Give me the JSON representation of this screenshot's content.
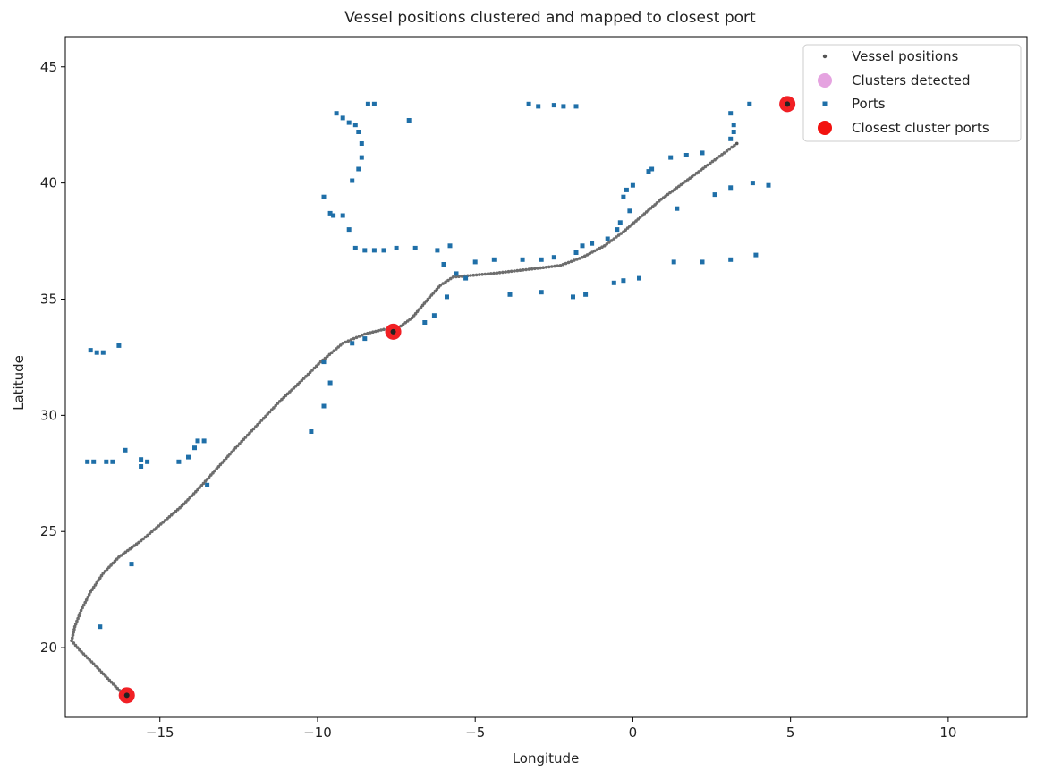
{
  "chart_data": {
    "type": "scatter",
    "title": "Vessel positions clustered and mapped to closest port",
    "xlabel": "Longitude",
    "ylabel": "Latitude",
    "xlim": [
      -18.0,
      12.5
    ],
    "ylim": [
      17.0,
      46.3
    ],
    "xticks": [
      -15,
      -10,
      -5,
      0,
      5,
      10
    ],
    "yticks": [
      20,
      25,
      30,
      35,
      40,
      45
    ],
    "grid": false,
    "legend_position": "top-right",
    "series": [
      {
        "name": "Vessel positions",
        "color": "#555555",
        "marker": "small-dot",
        "track": [
          [
            -16.1,
            17.9
          ],
          [
            -16.6,
            18.6
          ],
          [
            -17.1,
            19.3
          ],
          [
            -17.55,
            19.9
          ],
          [
            -17.8,
            20.3
          ],
          [
            -17.7,
            20.9
          ],
          [
            -17.5,
            21.6
          ],
          [
            -17.2,
            22.4
          ],
          [
            -16.8,
            23.2
          ],
          [
            -16.3,
            23.9
          ],
          [
            -15.6,
            24.6
          ],
          [
            -14.9,
            25.4
          ],
          [
            -14.3,
            26.1
          ],
          [
            -13.8,
            26.8
          ],
          [
            -13.2,
            27.7
          ],
          [
            -12.6,
            28.6
          ],
          [
            -11.9,
            29.6
          ],
          [
            -11.2,
            30.6
          ],
          [
            -10.5,
            31.5
          ],
          [
            -9.9,
            32.3
          ],
          [
            -9.2,
            33.1
          ],
          [
            -8.5,
            33.5
          ],
          [
            -7.9,
            33.7
          ],
          [
            -7.5,
            33.7
          ],
          [
            -7.0,
            34.2
          ],
          [
            -6.5,
            35.0
          ],
          [
            -6.1,
            35.6
          ],
          [
            -5.7,
            35.95
          ],
          [
            -4.5,
            36.1
          ],
          [
            -3.2,
            36.3
          ],
          [
            -2.3,
            36.45
          ],
          [
            -1.6,
            36.8
          ],
          [
            -0.9,
            37.3
          ],
          [
            -0.3,
            37.9
          ],
          [
            0.3,
            38.6
          ],
          [
            0.9,
            39.3
          ],
          [
            1.6,
            40.0
          ],
          [
            2.3,
            40.7
          ],
          [
            2.9,
            41.3
          ],
          [
            3.3,
            41.7
          ]
        ]
      },
      {
        "name": "Clusters detected",
        "color": "#e5a3e0",
        "marker": "large-dot",
        "points": [
          [
            -16.05,
            17.95
          ],
          [
            -7.6,
            33.6
          ],
          [
            4.9,
            43.4
          ]
        ]
      },
      {
        "name": "Ports",
        "color": "#1f6fa8",
        "marker": "small-square",
        "points": [
          [
            -17.2,
            32.8
          ],
          [
            -17.0,
            32.7
          ],
          [
            -16.8,
            32.7
          ],
          [
            -16.3,
            33.0
          ],
          [
            -17.3,
            28.0
          ],
          [
            -17.1,
            28.0
          ],
          [
            -16.7,
            28.0
          ],
          [
            -16.5,
            28.0
          ],
          [
            -16.1,
            28.5
          ],
          [
            -15.6,
            28.1
          ],
          [
            -15.6,
            27.8
          ],
          [
            -15.4,
            28.0
          ],
          [
            -14.4,
            28.0
          ],
          [
            -14.1,
            28.2
          ],
          [
            -13.9,
            28.6
          ],
          [
            -13.8,
            28.9
          ],
          [
            -13.6,
            28.9
          ],
          [
            -13.5,
            27.0
          ],
          [
            -16.9,
            20.9
          ],
          [
            -15.9,
            23.6
          ],
          [
            -9.8,
            39.4
          ],
          [
            -9.6,
            38.7
          ],
          [
            -9.5,
            38.6
          ],
          [
            -9.2,
            38.6
          ],
          [
            -9.0,
            38.0
          ],
          [
            -8.8,
            37.2
          ],
          [
            -8.5,
            37.1
          ],
          [
            -8.2,
            37.1
          ],
          [
            -7.9,
            37.1
          ],
          [
            -7.5,
            37.2
          ],
          [
            -6.9,
            37.2
          ],
          [
            -6.2,
            37.1
          ],
          [
            -6.0,
            36.5
          ],
          [
            -5.8,
            37.3
          ],
          [
            -5.6,
            36.1
          ],
          [
            -5.3,
            35.9
          ],
          [
            -5.0,
            36.6
          ],
          [
            -9.4,
            43.0
          ],
          [
            -9.2,
            42.8
          ],
          [
            -9.0,
            42.6
          ],
          [
            -8.8,
            42.5
          ],
          [
            -8.7,
            42.2
          ],
          [
            -8.6,
            41.7
          ],
          [
            -8.6,
            41.1
          ],
          [
            -8.7,
            40.6
          ],
          [
            -8.9,
            40.1
          ],
          [
            -8.4,
            43.4
          ],
          [
            -8.2,
            43.4
          ],
          [
            -7.1,
            42.7
          ],
          [
            -3.3,
            43.4
          ],
          [
            -3.0,
            43.3
          ],
          [
            -2.5,
            43.35
          ],
          [
            -2.2,
            43.3
          ],
          [
            -1.8,
            43.3
          ],
          [
            -9.8,
            32.3
          ],
          [
            -9.6,
            31.4
          ],
          [
            -9.8,
            30.4
          ],
          [
            -10.2,
            29.3
          ],
          [
            -8.9,
            33.1
          ],
          [
            -8.5,
            33.3
          ],
          [
            -6.6,
            34.0
          ],
          [
            -6.3,
            34.3
          ],
          [
            -5.9,
            35.1
          ],
          [
            -3.9,
            35.2
          ],
          [
            -2.9,
            35.3
          ],
          [
            -1.9,
            35.1
          ],
          [
            -1.5,
            35.2
          ],
          [
            -0.6,
            35.7
          ],
          [
            -0.3,
            35.8
          ],
          [
            0.2,
            35.9
          ],
          [
            -4.4,
            36.7
          ],
          [
            -3.5,
            36.7
          ],
          [
            -2.9,
            36.7
          ],
          [
            -2.5,
            36.8
          ],
          [
            -1.8,
            37.0
          ],
          [
            -1.6,
            37.3
          ],
          [
            -1.3,
            37.4
          ],
          [
            -0.8,
            37.6
          ],
          [
            -0.5,
            38.0
          ],
          [
            -0.4,
            38.3
          ],
          [
            -0.1,
            38.8
          ],
          [
            -0.3,
            39.4
          ],
          [
            -0.2,
            39.7
          ],
          [
            0.0,
            39.9
          ],
          [
            0.5,
            40.5
          ],
          [
            0.6,
            40.6
          ],
          [
            1.2,
            41.1
          ],
          [
            1.7,
            41.2
          ],
          [
            2.2,
            41.3
          ],
          [
            3.1,
            41.9
          ],
          [
            3.2,
            42.2
          ],
          [
            3.2,
            42.5
          ],
          [
            3.1,
            43.0
          ],
          [
            3.7,
            43.4
          ],
          [
            2.6,
            39.5
          ],
          [
            3.1,
            39.8
          ],
          [
            3.8,
            40.0
          ],
          [
            4.3,
            39.9
          ],
          [
            1.4,
            38.9
          ],
          [
            1.3,
            36.6
          ],
          [
            2.2,
            36.6
          ],
          [
            3.1,
            36.7
          ],
          [
            3.9,
            36.9
          ]
        ]
      },
      {
        "name": "Closest cluster ports",
        "color": "#f2120f",
        "marker": "large-dot",
        "points": [
          [
            -16.05,
            17.95
          ],
          [
            -7.6,
            33.6
          ],
          [
            4.9,
            43.4
          ]
        ]
      }
    ]
  }
}
